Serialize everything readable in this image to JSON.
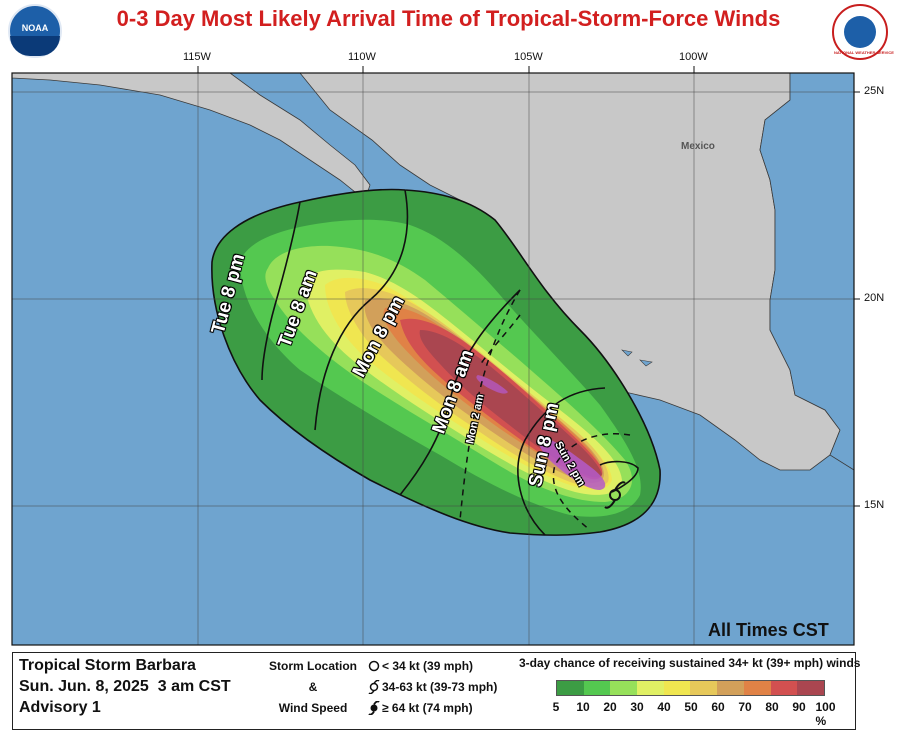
{
  "title": "0-3 Day Most Likely Arrival Time of Tropical-Storm-Force Winds",
  "logos": {
    "left": "noaa-logo",
    "left_text": "NOAA",
    "right": "nws-logo",
    "right_text": "NATIONAL WEATHER SERVICE"
  },
  "map": {
    "longitude_labels": [
      "115W",
      "110W",
      "105W",
      "100W"
    ],
    "latitude_labels": [
      "25N",
      "20N",
      "15N"
    ],
    "country_label": "Mexico",
    "time_note": "All Times CST",
    "arrival_labels": [
      "Tue 8 pm",
      "Tue 8 am",
      "Mon 8 pm",
      "Mon 8 am",
      "Sun 8 pm"
    ],
    "dashed_labels": [
      "Mon 2 am",
      "Sun 2 pm"
    ],
    "colors": {
      "ocean": "#6fa4cf",
      "land": "#c8c8c8"
    }
  },
  "storm": {
    "name": "Tropical Storm Barbara",
    "datetime": "Sun. Jun. 8, 2025  3 am CST",
    "advisory": "Advisory 1"
  },
  "symbols": {
    "label_line1": "Storm Location",
    "label_line2": "&",
    "label_line3": "Wind Speed",
    "items": [
      {
        "icon": "circle-storm-icon",
        "text": "< 34 kt (39 mph)"
      },
      {
        "icon": "tropical-storm-icon",
        "text": "34-63 kt (39-73 mph)"
      },
      {
        "icon": "hurricane-icon",
        "text": "≥ 64 kt (74 mph)"
      }
    ]
  },
  "probability_legend": {
    "title": "3-day chance of receiving sustained 34+ kt (39+ mph) winds",
    "labels": [
      "5",
      "10",
      "20",
      "30",
      "40",
      "50",
      "60",
      "70",
      "80",
      "90",
      "100 %"
    ],
    "colors": [
      "#3c9c44",
      "#54c850",
      "#96e05a",
      "#e0f064",
      "#f0e650",
      "#e6c85a",
      "#d2a05a",
      "#e08246",
      "#d25050",
      "#aa4650",
      "#b45ac8"
    ]
  }
}
